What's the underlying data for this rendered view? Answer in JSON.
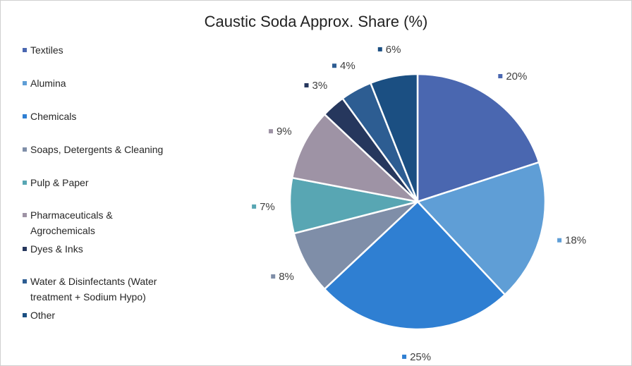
{
  "chart_data": {
    "type": "pie",
    "title": "Caustic Soda Approx. Share (%)",
    "legend_position": "left",
    "slices": [
      {
        "name": "Textiles",
        "value": 20,
        "label": "20%",
        "color": "#4a67b0"
      },
      {
        "name": "Alumina",
        "value": 18,
        "label": "18%",
        "color": "#5f9ed6"
      },
      {
        "name": "Chemicals",
        "value": 25,
        "label": "25%",
        "color": "#2f7fd2"
      },
      {
        "name": "Soaps, Detergents & Cleaning",
        "value": 8,
        "label": "8%",
        "color": "#7f8ea8"
      },
      {
        "name": "Pulp & Paper",
        "value": 7,
        "label": "7%",
        "color": "#58a6b3"
      },
      {
        "name": "Pharmaceuticals & Agrochemicals",
        "value": 9,
        "label": "9%",
        "color": "#9e93a5"
      },
      {
        "name": "Dyes & Inks",
        "value": 3,
        "label": "3%",
        "color": "#26375d"
      },
      {
        "name": "Water & Disinfectants (Water treatment + Sodium Hypo)",
        "value": 4,
        "label": "4%",
        "color": "#2d5d92"
      },
      {
        "name": "Other",
        "value": 6,
        "label": "6%",
        "color": "#1b4f82"
      }
    ]
  },
  "legend": {
    "items": [
      {
        "lines": [
          "Textiles"
        ],
        "color": "#4a67b0"
      },
      {
        "lines": [
          "Alumina"
        ],
        "color": "#5f9ed6"
      },
      {
        "lines": [
          "Chemicals"
        ],
        "color": "#2f7fd2"
      },
      {
        "lines": [
          "Soaps, Detergents & Cleaning"
        ],
        "color": "#7f8ea8"
      },
      {
        "lines": [
          "Pulp & Paper"
        ],
        "color": "#58a6b3"
      },
      {
        "lines": [
          "Pharmaceuticals &",
          "Agrochemicals"
        ],
        "color": "#9e93a5"
      },
      {
        "lines": [
          "Dyes & Inks"
        ],
        "color": "#26375d"
      },
      {
        "lines": [
          "Water & Disinfectants (Water",
          "treatment + Sodium Hypo)"
        ],
        "color": "#2d5d92"
      },
      {
        "lines": [
          "Other"
        ],
        "color": "#1b4f82"
      }
    ]
  }
}
